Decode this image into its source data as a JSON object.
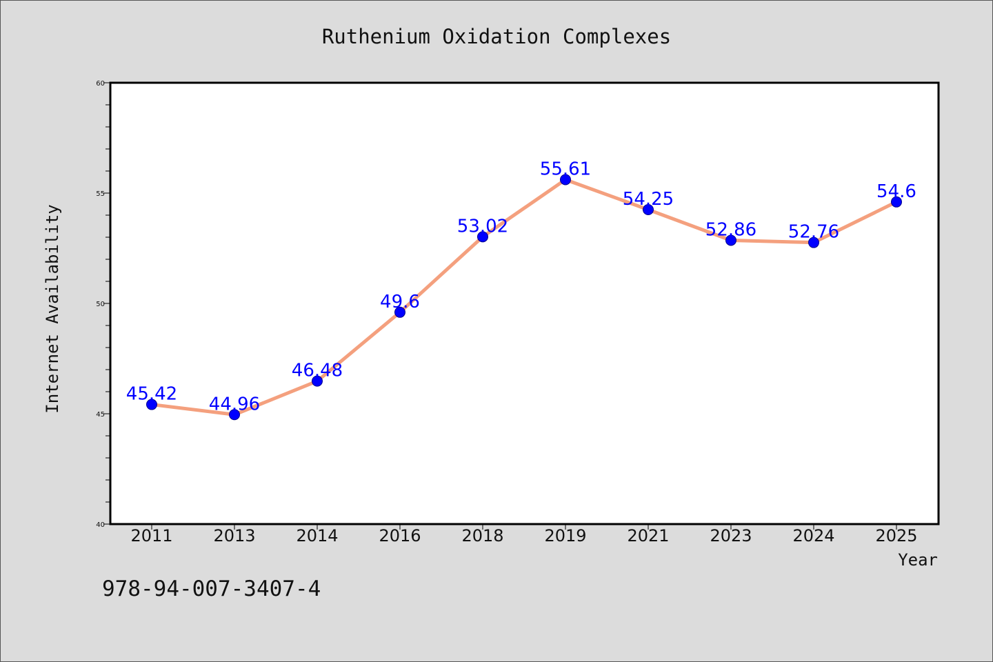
{
  "chart_data": {
    "type": "line",
    "title": "Ruthenium Oxidation Complexes",
    "xlabel": "Year",
    "ylabel": "Internet Availability",
    "categories": [
      "2011",
      "2013",
      "2014",
      "2016",
      "2018",
      "2019",
      "2021",
      "2023",
      "2024",
      "2025"
    ],
    "values": [
      45.42,
      44.96,
      46.48,
      49.6,
      53.02,
      55.61,
      54.25,
      52.86,
      52.76,
      54.6
    ],
    "data_labels": [
      "45.42",
      "44.96",
      "46.48",
      "49.6",
      "53.02",
      "55.61",
      "54.25",
      "52.86",
      "52.76",
      "54.6"
    ],
    "ylim": [
      40,
      60
    ],
    "yticks": [
      "40",
      "45",
      "50",
      "55",
      "60"
    ],
    "grid": false,
    "line_color": "#f4a07e",
    "marker_color": "#0000ff",
    "label_color": "#0000ff"
  },
  "annotation": "978-94-007-3407-4"
}
